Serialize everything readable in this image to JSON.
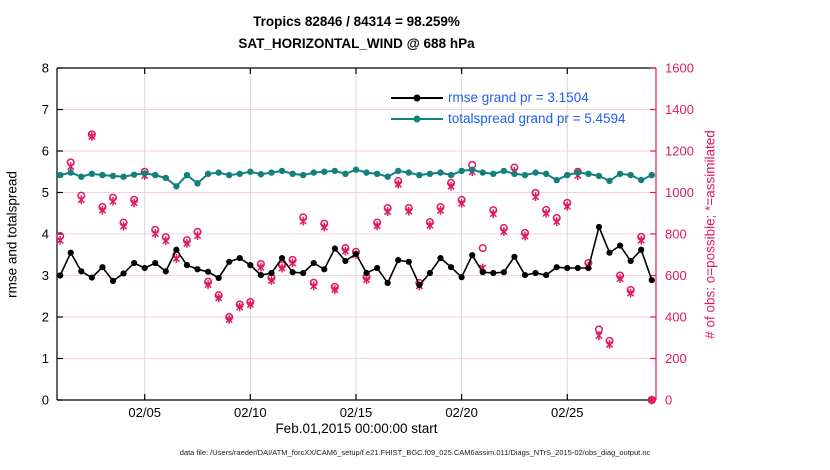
{
  "figure": {
    "title_line1": "Tropics 82846 / 84314 = 98.259%",
    "title_line2": "SAT_HORIZONTAL_WIND @ 688 hPa",
    "xlabel": "Feb.01,2015 00:00:00 start",
    "ylabel_left": "rmse and totalspread",
    "ylabel_right": "# of obs: o=possible; *=assimilated",
    "datafile": "data file: /Users/raeder/DAI/ATM_forcXX/CAM6_setup/f.e21.FHIST_BGC.f09_025.CAM6assim.011/Diags_NTrS_2015-02/obs_diag_output.nc",
    "legend": [
      {
        "label": "rmse grand pr = 3.1504",
        "series": "rmse"
      },
      {
        "label": "totalspread grand pr = 5.4594",
        "series": "totalspread"
      }
    ]
  },
  "colors": {
    "rmse": "#000000",
    "totalspread": "#12807d",
    "obs": "#e01a5c",
    "legend_text": "#1f5ef0",
    "grid_h": "#f5d0dd",
    "grid_v": "#d6d6d6",
    "axis_left": "#000000",
    "axis_right": "#e01a5c"
  },
  "chart_data": {
    "type": "line",
    "x_unit": "day of February 2015 (29 = Mar 1), 12-hourly bins",
    "x": [
      1,
      1.5,
      2,
      2.5,
      3,
      3.5,
      4,
      4.5,
      5,
      5.5,
      6,
      6.5,
      7,
      7.5,
      8,
      8.5,
      9,
      9.5,
      10,
      10.5,
      11,
      11.5,
      12,
      12.5,
      13,
      13.5,
      14,
      14.5,
      15,
      15.5,
      16,
      16.5,
      17,
      17.5,
      18,
      18.5,
      19,
      19.5,
      20,
      20.5,
      21,
      21.5,
      22,
      22.5,
      23,
      23.5,
      24,
      24.5,
      25,
      25.5,
      26,
      26.5,
      27,
      27.5,
      28,
      28.5,
      29
    ],
    "series": [
      {
        "name": "rmse",
        "axis": "left",
        "marker": "filled-circle",
        "values": [
          3.0,
          3.55,
          3.1,
          2.95,
          3.2,
          2.87,
          3.05,
          3.3,
          3.18,
          3.3,
          3.1,
          3.62,
          3.25,
          3.15,
          3.09,
          2.94,
          3.33,
          3.42,
          3.25,
          3.01,
          3.06,
          3.42,
          3.08,
          3.06,
          3.3,
          3.15,
          3.65,
          3.35,
          3.52,
          3.06,
          3.18,
          2.82,
          3.37,
          3.33,
          2.77,
          3.06,
          3.42,
          3.2,
          2.96,
          3.49,
          3.08,
          3.06,
          3.08,
          3.45,
          3.01,
          3.06,
          3.01,
          3.2,
          3.18,
          3.18,
          3.18,
          4.17,
          3.55,
          3.72,
          3.35,
          3.62,
          2.89
        ]
      },
      {
        "name": "totalspread",
        "axis": "left",
        "marker": "filled-circle",
        "values": [
          5.42,
          5.48,
          5.38,
          5.45,
          5.42,
          5.4,
          5.38,
          5.43,
          5.46,
          5.42,
          5.35,
          5.15,
          5.42,
          5.22,
          5.45,
          5.48,
          5.42,
          5.45,
          5.5,
          5.44,
          5.48,
          5.52,
          5.45,
          5.42,
          5.48,
          5.5,
          5.52,
          5.45,
          5.55,
          5.48,
          5.45,
          5.38,
          5.52,
          5.48,
          5.42,
          5.45,
          5.48,
          5.42,
          5.52,
          5.55,
          5.48,
          5.45,
          5.52,
          5.45,
          5.42,
          5.48,
          5.45,
          5.3,
          5.42,
          5.48,
          5.45,
          5.4,
          5.28,
          5.45,
          5.42,
          5.3,
          5.42
        ]
      },
      {
        "name": "obs_possible",
        "axis": "right",
        "marker": "open-circle",
        "values": [
          790,
          1145,
          985,
          1280,
          930,
          975,
          855,
          965,
          1100,
          820,
          785,
          700,
          770,
          810,
          570,
          505,
          400,
          460,
          472,
          655,
          590,
          650,
          675,
          880,
          565,
          850,
          545,
          732,
          714,
          593,
          855,
          925,
          1055,
          925,
          564,
          857,
          930,
          1046,
          964,
          1133,
          732,
          915,
          829,
          1120,
          805,
          998,
          916,
          877,
          950,
          1100,
          660,
          340,
          285,
          600,
          530,
          786,
          0
        ]
      },
      {
        "name": "obs_assimilated",
        "axis": "right",
        "marker": "asterisk",
        "values": [
          770,
          1125,
          965,
          1270,
          915,
          958,
          838,
          950,
          1082,
          802,
          768,
          682,
          755,
          792,
          556,
          492,
          388,
          448,
          460,
          640,
          576,
          636,
          660,
          862,
          550,
          834,
          532,
          718,
          700,
          580,
          840,
          908,
          1040,
          910,
          550,
          842,
          914,
          1030,
          948,
          1100,
          636,
          898,
          812,
          1102,
          790,
          980,
          900,
          860,
          934,
          1082,
          645,
          310,
          268,
          585,
          515,
          770,
          0
        ]
      }
    ],
    "title": "Tropics 82846 / 84314 = 98.259% | SAT_HORIZONTAL_WIND @ 688 hPa",
    "xlabel": "Feb.01,2015 00:00:00 start",
    "ylabel_left": "rmse and totalspread",
    "ylabel_right": "# of obs: o=possible; *=assimilated",
    "xlim": [
      0.85,
      29.2
    ],
    "ylim_left": [
      0,
      8
    ],
    "ylim_right": [
      0,
      1600
    ],
    "x_ticks": [
      {
        "v": 5,
        "label": "02/05"
      },
      {
        "v": 10,
        "label": "02/10"
      },
      {
        "v": 15,
        "label": "02/15"
      },
      {
        "v": 20,
        "label": "02/20"
      },
      {
        "v": 25,
        "label": "02/25"
      }
    ],
    "y_ticks_left": [
      0,
      1,
      2,
      3,
      4,
      5,
      6,
      7,
      8
    ],
    "y_ticks_right": [
      0,
      200,
      400,
      600,
      800,
      1000,
      1200,
      1400,
      1600
    ],
    "grid": true,
    "legend_position": "top-right-inside"
  }
}
